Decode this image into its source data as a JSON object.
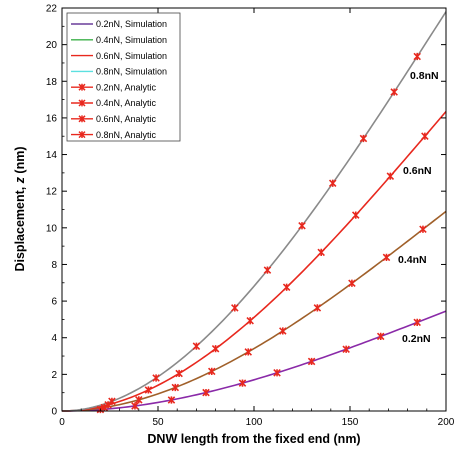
{
  "chart_data": {
    "type": "line",
    "xlabel": "DNW length from the fixed end (nm)",
    "ylabel_main": "Displacement, ",
    "ylabel_var": "z",
    "ylabel_unit": " (nm)",
    "xlim": [
      0,
      200
    ],
    "ylim": [
      0,
      22
    ],
    "xticks": [
      0,
      50,
      100,
      150,
      200
    ],
    "yticks": [
      0,
      2,
      4,
      6,
      8,
      10,
      12,
      14,
      16,
      18,
      20,
      22
    ],
    "grid": false,
    "legend_position": "top-left",
    "simulation_series": [
      {
        "name": "0.2nN, Simulation",
        "color": "#6a3d9a",
        "draw_color": "#8a2aa8",
        "tip_value": 5.45,
        "end_label": "0.2nN"
      },
      {
        "name": "0.4nN, Simulation",
        "color": "#3cb04a",
        "draw_color": "#a0602a",
        "tip_value": 10.9,
        "end_label": "0.4nN"
      },
      {
        "name": "0.6nN, Simulation",
        "color": "#e8281e",
        "draw_color": "#e8281e",
        "tip_value": 16.35,
        "end_label": "0.6nN"
      },
      {
        "name": "0.8nN, Simulation",
        "color": "#5ce0e0",
        "draw_color": "#8a8a8a",
        "tip_value": 21.8,
        "end_label": "0.8nN"
      }
    ],
    "analytic_series": [
      {
        "name": "0.2nN, Analytic",
        "color": "#e8281e",
        "tip_value": 5.45,
        "x": [
          20,
          38,
          57,
          75,
          94,
          112,
          130,
          148,
          166,
          185
        ]
      },
      {
        "name": "0.4nN, Analytic",
        "color": "#e8281e",
        "tip_value": 10.9,
        "x": [
          22,
          40,
          59,
          78,
          97,
          115,
          133,
          151,
          169,
          188
        ]
      },
      {
        "name": "0.6nN, Analytic",
        "color": "#e8281e",
        "tip_value": 16.35,
        "x": [
          24,
          45,
          61,
          80,
          98,
          117,
          135,
          153,
          171,
          189
        ]
      },
      {
        "name": "0.8nN, Analytic",
        "color": "#e8281e",
        "tip_value": 21.8,
        "x": [
          26,
          49,
          70,
          90,
          107,
          125,
          141,
          157,
          173,
          185
        ]
      }
    ]
  }
}
